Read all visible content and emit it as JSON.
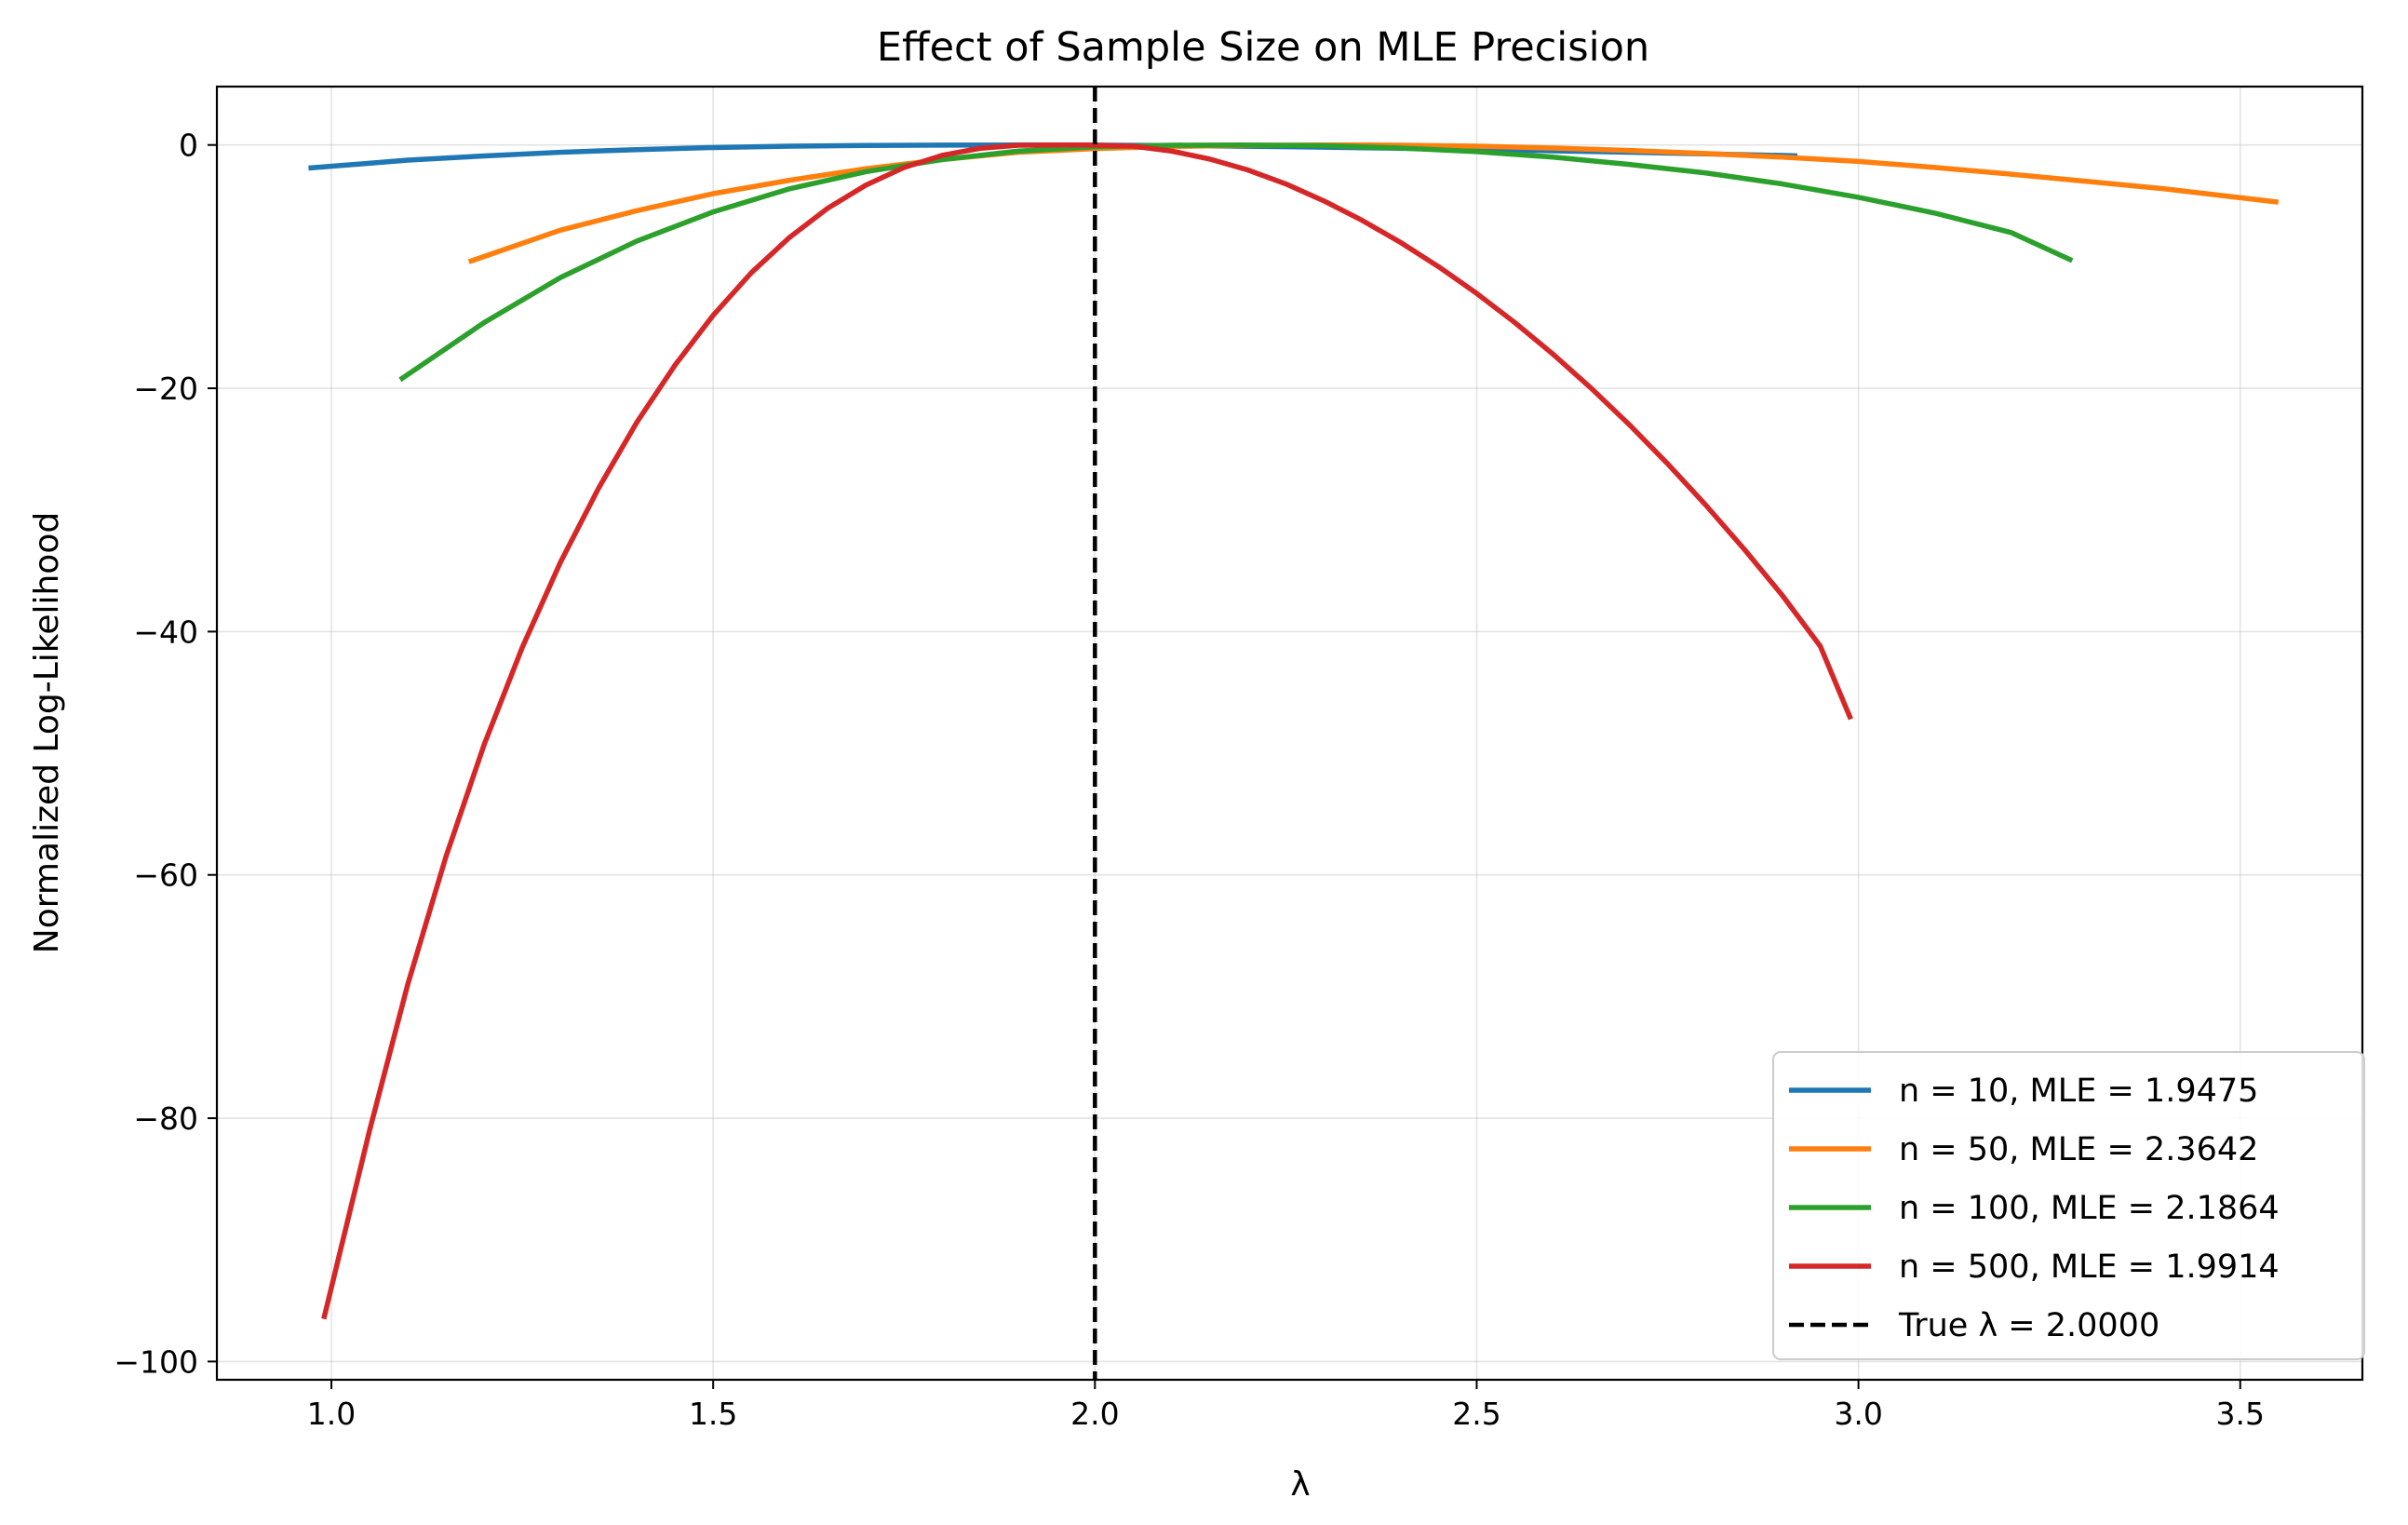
{
  "chart_data": {
    "type": "line",
    "title": "Effect of Sample Size on MLE Precision",
    "xlabel": "λ",
    "ylabel": "Normalized Log-Likelihood",
    "xlim": [
      0.85,
      3.66
    ],
    "ylim": [
      -101.5,
      4.8
    ],
    "x_ticks": [
      1.0,
      1.5,
      2.0,
      2.5,
      3.0,
      3.5
    ],
    "x_tick_labels": [
      "1.0",
      "1.5",
      "2.0",
      "2.5",
      "3.0",
      "3.5"
    ],
    "y_ticks": [
      0,
      -20,
      -40,
      -60,
      -80,
      -100
    ],
    "y_tick_labels": [
      "0",
      "−20",
      "−40",
      "−60",
      "−80",
      "−100"
    ],
    "grid": true,
    "legend_position": "lower-right",
    "series": [
      {
        "name": "n = 10, MLE = 1.9475",
        "color": "#1f77b4",
        "x": [
          0.97,
          1.1,
          1.2,
          1.3,
          1.4,
          1.5,
          1.6,
          1.7,
          1.8,
          1.9,
          1.95,
          2.0,
          2.1,
          2.2,
          2.3,
          2.4,
          2.5,
          2.6,
          2.7,
          2.8,
          2.92
        ],
        "y": [
          -1.9,
          -1.25,
          -0.9,
          -0.6,
          -0.38,
          -0.21,
          -0.1,
          -0.04,
          -0.01,
          0.0,
          0.0,
          -0.01,
          -0.05,
          -0.11,
          -0.18,
          -0.27,
          -0.37,
          -0.48,
          -0.6,
          -0.73,
          -0.89
        ]
      },
      {
        "name": "n = 50, MLE = 2.3642",
        "color": "#ff7f0e",
        "x": [
          1.18,
          1.3,
          1.4,
          1.5,
          1.6,
          1.7,
          1.8,
          1.9,
          2.0,
          2.1,
          2.2,
          2.3,
          2.36,
          2.4,
          2.5,
          2.6,
          2.7,
          2.8,
          2.9,
          3.0,
          3.1,
          3.2,
          3.3,
          3.4,
          3.55
        ],
        "y": [
          -9.6,
          -7.0,
          -5.4,
          -4.0,
          -2.9,
          -1.95,
          -1.2,
          -0.6,
          -0.3,
          -0.12,
          -0.03,
          0.0,
          0.0,
          -0.02,
          -0.1,
          -0.25,
          -0.45,
          -0.7,
          -1.0,
          -1.35,
          -1.85,
          -2.4,
          -3.0,
          -3.6,
          -4.7
        ]
      },
      {
        "name": "n = 100, MLE = 2.1864",
        "color": "#2ca02c",
        "x": [
          1.09,
          1.2,
          1.3,
          1.4,
          1.5,
          1.6,
          1.7,
          1.8,
          1.9,
          2.0,
          2.1,
          2.19,
          2.3,
          2.4,
          2.5,
          2.6,
          2.7,
          2.8,
          2.9,
          3.0,
          3.1,
          3.2,
          3.28
        ],
        "y": [
          -19.3,
          -14.6,
          -10.9,
          -7.9,
          -5.5,
          -3.6,
          -2.2,
          -1.2,
          -0.5,
          -0.15,
          -0.02,
          0.0,
          -0.06,
          -0.25,
          -0.55,
          -1.0,
          -1.6,
          -2.3,
          -3.2,
          -4.3,
          -5.6,
          -7.2,
          -9.5
        ]
      },
      {
        "name": "n = 500, MLE = 1.9914",
        "color": "#d62728",
        "x": [
          0.99,
          1.05,
          1.1,
          1.15,
          1.2,
          1.25,
          1.3,
          1.35,
          1.4,
          1.45,
          1.5,
          1.55,
          1.6,
          1.65,
          1.7,
          1.75,
          1.8,
          1.85,
          1.9,
          1.95,
          1.99,
          2.05,
          2.1,
          2.15,
          2.2,
          2.25,
          2.3,
          2.35,
          2.4,
          2.45,
          2.5,
          2.55,
          2.6,
          2.65,
          2.7,
          2.75,
          2.8,
          2.85,
          2.9,
          2.95,
          2.99
        ],
        "y": [
          -96.5,
          -81.0,
          -69.0,
          -58.5,
          -49.3,
          -41.3,
          -34.3,
          -28.2,
          -22.8,
          -18.1,
          -14.0,
          -10.5,
          -7.6,
          -5.2,
          -3.3,
          -1.85,
          -0.85,
          -0.27,
          -0.02,
          0.0,
          0.0,
          -0.1,
          -0.5,
          -1.15,
          -2.05,
          -3.2,
          -4.6,
          -6.2,
          -8.0,
          -10.0,
          -12.2,
          -14.6,
          -17.2,
          -20.0,
          -23.0,
          -26.2,
          -29.6,
          -33.2,
          -37.0,
          -41.2,
          -47.2
        ]
      }
    ],
    "reference_lines": [
      {
        "name": "True λ = 2.0000",
        "x": 2.0,
        "color": "#000000",
        "style": "dashed"
      }
    ]
  }
}
